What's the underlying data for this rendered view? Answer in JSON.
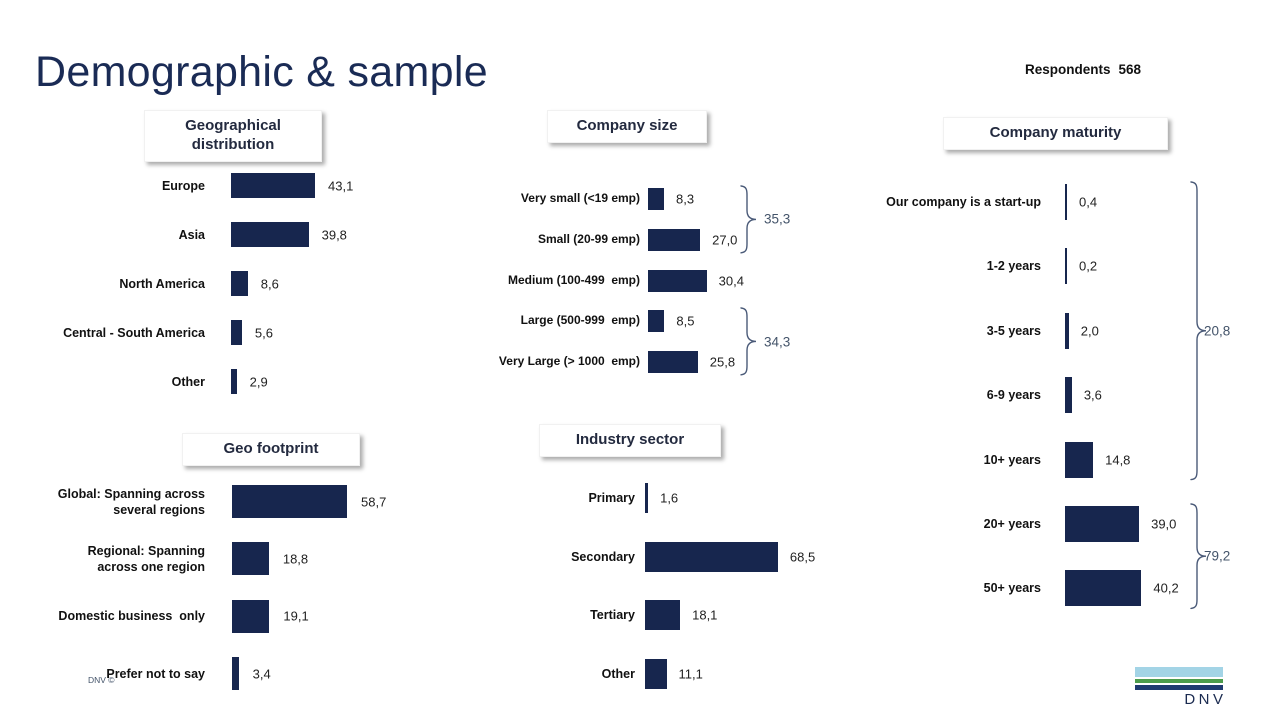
{
  "title": "Demographic & sample",
  "respondents": {
    "label": "Respondents",
    "value": "568"
  },
  "footer": {
    "copyright": "DNV ©",
    "logo_text": "DNV"
  },
  "colors": {
    "bar": "#17264E",
    "title_text": "#1A2B55",
    "bracket": "#4A5A78",
    "bracket_text": "#44546A",
    "logo_sky": "#A3D4E6",
    "logo_green": "#4C9C4C",
    "logo_navy": "#1E3A70"
  },
  "chart_data": [
    {
      "id": "geographical-distribution",
      "type": "bar",
      "orientation": "horizontal",
      "title": "Geographical\ndistribution",
      "categories": [
        "Europe",
        "Asia",
        "North America",
        "Central - South America",
        "Other"
      ],
      "values": [
        43.1,
        39.8,
        8.6,
        5.6,
        2.9
      ],
      "value_format": "comma-decimal",
      "brackets": []
    },
    {
      "id": "company-size",
      "type": "bar",
      "orientation": "horizontal",
      "title": "Company size",
      "categories": [
        "Very small (<19 emp)",
        "Small (20-99 emp)",
        "Medium (100-499  emp)",
        "Large (500-999  emp)",
        "Very Large (> 1000  emp)"
      ],
      "values": [
        8.3,
        27.0,
        30.4,
        8.5,
        25.8
      ],
      "value_format": "comma-decimal",
      "brackets": [
        {
          "value": 35.3,
          "from": 0,
          "to": 1
        },
        {
          "value": 34.3,
          "from": 3,
          "to": 4
        }
      ]
    },
    {
      "id": "company-maturity",
      "type": "bar",
      "orientation": "horizontal",
      "title": "Company maturity",
      "categories": [
        "Our company is a start-up",
        "1-2 years",
        "3-5 years",
        "6-9 years",
        "10+ years",
        "20+ years",
        "50+ years"
      ],
      "values": [
        0.4,
        0.2,
        2.0,
        3.6,
        14.8,
        39.0,
        40.2
      ],
      "value_format": "comma-decimal",
      "brackets": [
        {
          "value": 20.8,
          "from": 0,
          "to": 4
        },
        {
          "value": 79.2,
          "from": 5,
          "to": 6
        }
      ]
    },
    {
      "id": "geo-footprint",
      "type": "bar",
      "orientation": "horizontal",
      "title": "Geo footprint",
      "categories": [
        "Global: Spanning across\nseveral regions",
        "Regional: Spanning\nacross one region",
        "Domestic business  only",
        "Prefer not to say"
      ],
      "values": [
        58.7,
        18.8,
        19.1,
        3.4
      ],
      "value_format": "comma-decimal",
      "brackets": []
    },
    {
      "id": "industry-sector",
      "type": "bar",
      "orientation": "horizontal",
      "title": "Industry sector",
      "categories": [
        "Primary",
        "Secondary",
        "Tertiary",
        "Other"
      ],
      "values": [
        1.6,
        68.5,
        18.1,
        11.1
      ],
      "value_format": "comma-decimal",
      "brackets": []
    }
  ]
}
